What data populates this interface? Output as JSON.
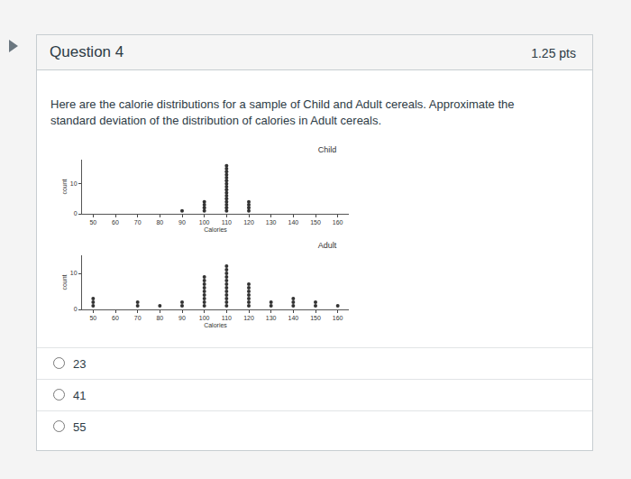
{
  "question": {
    "title": "Question 4",
    "points": "1.25 pts",
    "text": "Here are the calorie distributions for a sample of Child and Adult cereals. Approximate the standard deviation of the distribution of calories in Adult cereals.",
    "options": [
      23,
      41,
      55
    ]
  },
  "chart_data": [
    {
      "type": "dot",
      "title": "Child",
      "x_label": "Calories",
      "y_label": "count",
      "x": [
        90,
        100,
        110,
        120
      ],
      "counts": [
        1,
        4,
        16,
        4
      ],
      "color": "#333333",
      "xlim": [
        45,
        165
      ],
      "xticks": [
        50,
        60,
        70,
        80,
        90,
        100,
        110,
        120,
        130,
        140,
        150,
        160
      ],
      "ylim": [
        0,
        18
      ],
      "yticks": [
        0,
        10
      ]
    },
    {
      "type": "dot",
      "title": "Adult",
      "x_label": "Calories",
      "y_label": "count",
      "x": [
        50,
        70,
        80,
        90,
        100,
        110,
        120,
        130,
        140,
        150,
        160
      ],
      "counts": [
        3,
        2,
        1,
        2,
        9,
        12,
        7,
        2,
        3,
        2,
        1
      ],
      "color": "#333333",
      "xlim": [
        45,
        165
      ],
      "xticks": [
        50,
        60,
        70,
        80,
        90,
        100,
        110,
        120,
        130,
        140,
        150,
        160
      ],
      "ylim": [
        0,
        15
      ],
      "yticks": [
        0,
        10
      ]
    }
  ]
}
